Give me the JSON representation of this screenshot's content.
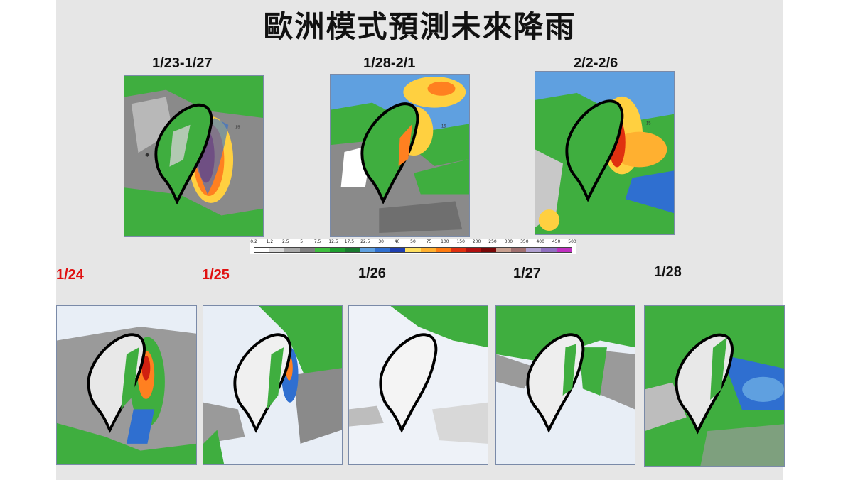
{
  "title": "歐洲模式預測未來降雨",
  "period_labels": [
    {
      "text": "1/23-1/27"
    },
    {
      "text": "1/28-2/1"
    },
    {
      "text": "2/2-2/6"
    }
  ],
  "daily_labels": [
    {
      "text": "1/24",
      "color": "#e01010"
    },
    {
      "text": "1/25",
      "color": "#e01010"
    },
    {
      "text": "1/26",
      "color": "#111111"
    },
    {
      "text": "1/27",
      "color": "#111111"
    },
    {
      "text": "1/28",
      "color": "#111111"
    }
  ],
  "legend": {
    "ticks": [
      "0.2",
      "1.2",
      "2.5",
      "5",
      "7.5",
      "12.5",
      "17.5",
      "22.5",
      "30",
      "40",
      "50",
      "75",
      "100",
      "150",
      "200",
      "250",
      "300",
      "350",
      "400",
      "450",
      "500"
    ],
    "colors": [
      "#ffffff",
      "#d9d9d9",
      "#a8a8a8",
      "#7f7f7f",
      "#3fbf3f",
      "#1f9f2f",
      "#1a7a30",
      "#5fa0e0",
      "#2f6fd0",
      "#1f3fb0",
      "#ffe060",
      "#ffb030",
      "#ff7a10",
      "#e03010",
      "#b01010",
      "#7a0808",
      "#c8a090",
      "#a07070",
      "#b0a0d0",
      "#9070c0",
      "#c030c0"
    ]
  },
  "maps": [
    {
      "name": "period-1",
      "land": "#3fae3f",
      "sea_base": "#7f7f7f"
    },
    {
      "name": "period-2",
      "land": "#3fae3f",
      "sea_base": "#5fa0e0"
    },
    {
      "name": "period-3",
      "land": "#3fae3f",
      "sea_base": "#5fa0e0"
    },
    {
      "name": "day-1-24",
      "land": "#e8e8e8",
      "sea_base": "#b0b0b0"
    },
    {
      "name": "day-1-25",
      "land": "#f0f0f0",
      "sea_base": "#e8eef6"
    },
    {
      "name": "day-1-26",
      "land": "#f4f4f4",
      "sea_base": "#eef2f8"
    },
    {
      "name": "day-1-27",
      "land": "#eeeeee",
      "sea_base": "#e8eef6"
    },
    {
      "name": "day-1-28",
      "land": "#e8e8e8",
      "sea_base": "#3fae3f"
    }
  ]
}
